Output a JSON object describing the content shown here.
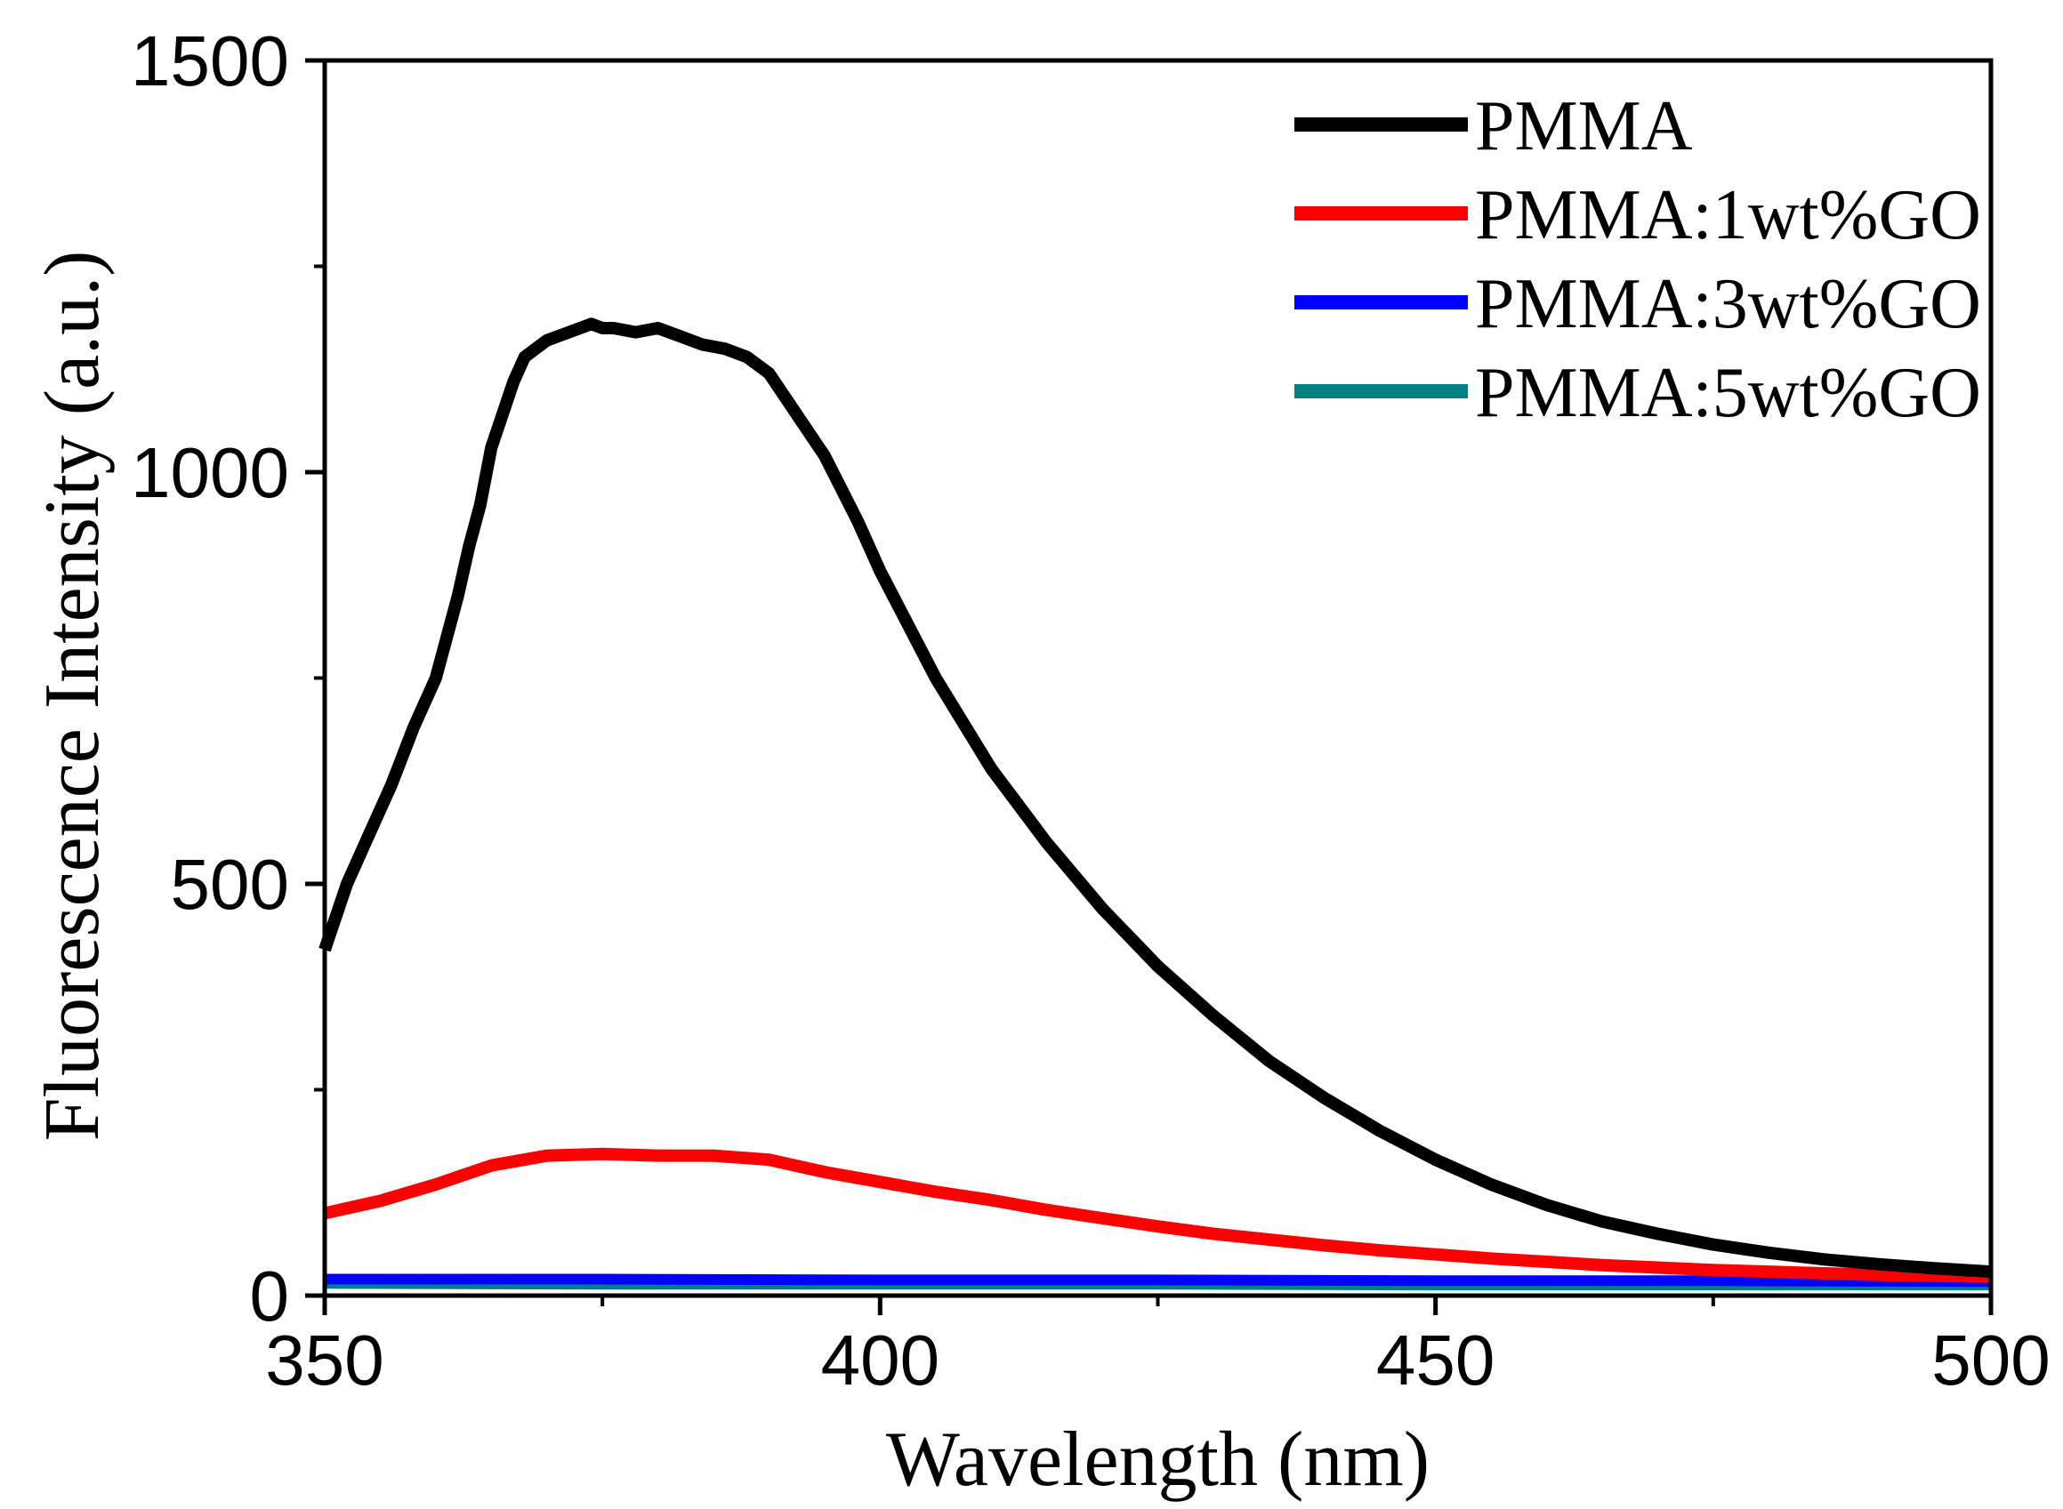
{
  "chart_data": {
    "type": "line",
    "title": "",
    "xlabel": "Wavelength (nm)",
    "ylabel": "Fluorescence Intensity (a.u.)",
    "xlim": [
      350,
      500
    ],
    "ylim": [
      0,
      1500
    ],
    "x_ticks": [
      350,
      400,
      450,
      500
    ],
    "x_tick_labels": [
      "350",
      "400",
      "450",
      "500"
    ],
    "x_minor_ticks": [
      375,
      425,
      475
    ],
    "y_ticks": [
      0,
      500,
      1000,
      1500
    ],
    "y_tick_labels": [
      "0",
      "500",
      "1000",
      "1500"
    ],
    "y_minor_ticks": [
      250,
      750,
      1250
    ],
    "legend_position": "top-right",
    "series": [
      {
        "name": "PMMA",
        "color": "#000000",
        "x": [
          350,
          352,
          354,
          356,
          358,
          360,
          362,
          363,
          364,
          365,
          366,
          367,
          368,
          370,
          372,
          374,
          375,
          376,
          378,
          380,
          382,
          384,
          386,
          388,
          390,
          392,
          395,
          398,
          400,
          405,
          410,
          415,
          420,
          425,
          430,
          435,
          440,
          445,
          450,
          455,
          460,
          465,
          470,
          475,
          480,
          485,
          490,
          495,
          500
        ],
        "y": [
          420,
          500,
          560,
          620,
          690,
          750,
          850,
          910,
          960,
          1030,
          1070,
          1110,
          1140,
          1160,
          1170,
          1180,
          1175,
          1175,
          1170,
          1175,
          1165,
          1155,
          1150,
          1140,
          1120,
          1080,
          1020,
          940,
          880,
          750,
          640,
          550,
          470,
          400,
          340,
          285,
          240,
          200,
          165,
          135,
          110,
          90,
          75,
          62,
          52,
          44,
          38,
          33,
          29
        ]
      },
      {
        "name": "PMMA:1wt%GO",
        "color": "#ff0000",
        "x": [
          350,
          355,
          360,
          365,
          370,
          375,
          380,
          385,
          390,
          395,
          400,
          405,
          410,
          415,
          420,
          425,
          430,
          435,
          440,
          445,
          450,
          455,
          460,
          465,
          470,
          475,
          480,
          485,
          490,
          495,
          500
        ],
        "y": [
          100,
          115,
          135,
          158,
          170,
          172,
          170,
          170,
          165,
          150,
          138,
          126,
          116,
          104,
          94,
          84,
          75,
          68,
          61,
          55,
          50,
          45,
          41,
          37,
          34,
          31,
          29,
          27,
          25,
          24,
          23
        ]
      },
      {
        "name": "PMMA:3wt%GO",
        "color": "#0000ff",
        "x": [
          350,
          375,
          400,
          425,
          450,
          475,
          500
        ],
        "y": [
          20,
          20,
          19,
          19,
          18,
          18,
          17
        ]
      },
      {
        "name": "PMMA:5wt%GO",
        "color": "#008080",
        "x": [
          350,
          375,
          400,
          425,
          450,
          475,
          500
        ],
        "y": [
          17,
          16,
          16,
          16,
          15,
          15,
          15
        ]
      }
    ]
  }
}
